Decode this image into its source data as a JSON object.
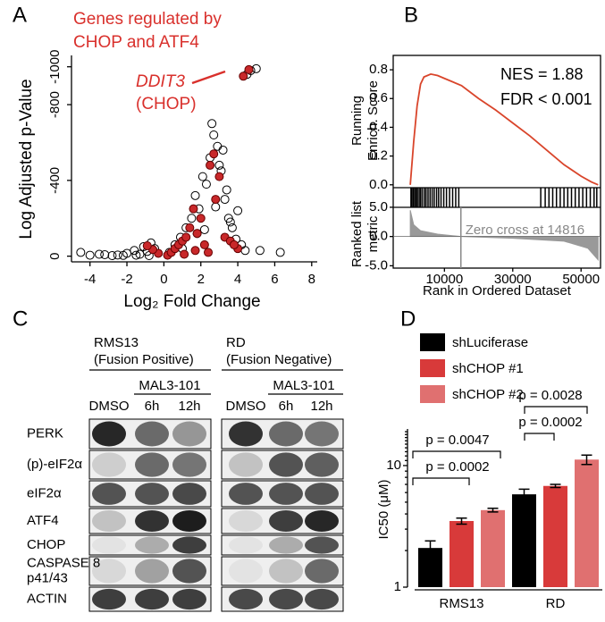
{
  "panels": [
    "A",
    "B",
    "C",
    "D"
  ],
  "chart_data": [
    {
      "type": "scatter",
      "title": [
        "Genes regulated by",
        "CHOP and ATF4"
      ],
      "annotation": [
        "DDIT3",
        "(CHOP)"
      ],
      "xlabel": "Log₂ Fold Change",
      "ylabel": "Log Adjusted p-Value",
      "xlim": [
        -5,
        8.3
      ],
      "ylim": [
        30,
        -1060
      ],
      "xticks": [
        -4,
        -2,
        0,
        2,
        4,
        6,
        8
      ],
      "yticks": [
        0,
        -400,
        -800,
        -1000
      ],
      "series": [
        {
          "color": "#000000",
          "style": "open",
          "x": [
            -4.5,
            -4,
            -3.2,
            -2.8,
            -2.5,
            -2,
            -1.6,
            -1.3,
            -1.1,
            -0.9,
            -0.7,
            -0.5,
            0.3,
            0.6,
            0.9,
            1.2,
            1.5,
            1.7,
            1.9,
            2.1,
            2.3,
            2.5,
            2.7,
            2.9,
            3.1,
            3.3,
            3.5,
            3.7,
            3.9,
            4.2,
            4.4,
            4.7,
            5.0,
            6.3,
            -1.5,
            -0.8,
            2.6,
            3.2,
            3.4,
            3.0,
            2.8,
            4.0,
            3.6,
            1.8,
            2.2,
            5.2,
            4.5,
            1.0,
            -2.2,
            -3.5
          ],
          "values": [
            -20,
            -5,
            -8,
            -3,
            -6,
            -15,
            -30,
            -10,
            -50,
            -25,
            -70,
            -40,
            -20,
            -60,
            -100,
            -150,
            -200,
            -320,
            -250,
            -420,
            -380,
            -520,
            -640,
            -580,
            -450,
            -300,
            -200,
            -150,
            -90,
            -60,
            -30,
            -980,
            -990,
            -20,
            -5,
            -3,
            -700,
            -560,
            -350,
            -480,
            -260,
            -240,
            -180,
            -120,
            -140,
            -30,
            -960,
            -40,
            -4,
            -10
          ]
        },
        {
          "color": "#c8282a",
          "style": "filled",
          "x": [
            0.2,
            0.4,
            0.6,
            0.8,
            1.0,
            1.2,
            1.4,
            1.6,
            1.8,
            2.0,
            2.2,
            2.5,
            2.8,
            3.0,
            3.3,
            3.6,
            4.0,
            4.6,
            4.3,
            -0.3,
            -0.6,
            -0.9,
            1.1,
            1.7,
            2.4,
            3.8,
            2.7
          ],
          "values": [
            -5,
            -20,
            -40,
            -60,
            -80,
            -100,
            -150,
            -250,
            -120,
            -200,
            -60,
            -480,
            -300,
            -420,
            -100,
            -80,
            -40,
            -985,
            -950,
            -15,
            -35,
            -55,
            -10,
            -30,
            -20,
            -60,
            -540
          ]
        }
      ]
    },
    {
      "type": "gsea",
      "annotations": [
        "NES = 1.88",
        "FDR < 0.001"
      ],
      "ylabel": [
        "Running",
        "Enrich. Score"
      ],
      "xlabel": "Rank in Ordered Dataset",
      "xlim": [
        -5000,
        55700
      ],
      "xticks": [
        10000,
        30000,
        50000
      ],
      "ylim": [
        -0.02,
        0.9
      ],
      "yticks": [
        {
          "value": 0.8,
          "label": "0.8"
        },
        {
          "value": 0.6,
          "label": "0.6"
        },
        {
          "value": 0.4,
          "label": "0.4"
        },
        {
          "value": 0.2,
          "label": "0.2"
        },
        {
          "value": 0,
          "label": "0.0"
        }
      ],
      "color": "#d9452b",
      "x": [
        0,
        1000,
        2000,
        3000,
        4000,
        6000,
        8000,
        10000,
        15000,
        20000,
        25000,
        30000,
        35000,
        40000,
        45000,
        50000,
        53000,
        55000
      ],
      "values": [
        0,
        0.3,
        0.55,
        0.7,
        0.75,
        0.77,
        0.76,
        0.74,
        0.69,
        0.6,
        0.52,
        0.43,
        0.34,
        0.24,
        0.14,
        0.06,
        0.02,
        0
      ],
      "hits": [
        200,
        500,
        900,
        1300,
        1700,
        2100,
        2600,
        3000,
        3500,
        4100,
        4600,
        5200,
        5800,
        6400,
        7000,
        7700,
        8300,
        9000,
        9800,
        10600,
        11500,
        12400,
        13300,
        14200,
        38200,
        39500,
        40600,
        41700,
        42800,
        43900,
        45000,
        46100,
        47200,
        48300,
        49400,
        50500,
        51600,
        52700,
        53800,
        54600
      ],
      "metric": {
        "ylabel": [
          "Ranked list",
          "metric"
        ],
        "annotation": "Zero cross at 14816",
        "zero_cross": 14816,
        "ylim": [
          -5.4,
          5.6
        ],
        "yticks": [
          {
            "value": 5,
            "label": "5.0"
          },
          {
            "value": 0,
            "label": "0.0"
          },
          {
            "value": -5,
            "label": "-5.0"
          }
        ],
        "color": "#999999",
        "x": [
          0,
          1000,
          3000,
          8000,
          14816,
          30000,
          45000,
          52000,
          55000
        ],
        "values": [
          4.5,
          2.0,
          1.0,
          0.4,
          0,
          -0.3,
          -0.8,
          -2,
          -4
        ]
      }
    },
    {
      "type": "bar",
      "log_y": true,
      "ylabel": "IC50 (μM)",
      "categories": [
        "RMS13",
        "RD"
      ],
      "ylim": [
        1,
        20
      ],
      "yticks": [
        1,
        10
      ],
      "series": [
        {
          "name": "shLuciferase",
          "color": "#000000",
          "values": [
            2.1,
            5.8
          ],
          "errors": [
            0.3,
            0.6
          ]
        },
        {
          "name": "shCHOP #1",
          "color": "#d83a3a",
          "values": [
            3.5,
            6.8
          ],
          "errors": [
            0.2,
            0.2
          ]
        },
        {
          "name": "shCHOP #2",
          "color": "#e07070",
          "values": [
            4.3,
            11.2
          ],
          "errors": [
            0.15,
            1.0
          ]
        }
      ],
      "annotations": [
        "p = 0.0047",
        "p = 0.0002",
        "p = 0.0028",
        "p = 0.0002"
      ]
    }
  ],
  "blot": {
    "cell_lines": [
      {
        "name": "RMS13",
        "subtitle": "(Fusion Positive)"
      },
      {
        "name": "RD",
        "subtitle": "(Fusion Negative)"
      }
    ],
    "treatment": "MAL3-101",
    "lanes": [
      "DMSO",
      "6h",
      "12h"
    ],
    "rows": [
      [
        "PERK"
      ],
      [
        "(p)-eIF2α"
      ],
      [
        "eIF2α"
      ],
      [
        "ATF4"
      ],
      [
        "CHOP"
      ],
      [
        "CASPASE 8",
        "p41/43"
      ],
      [
        "ACTIN"
      ]
    ]
  }
}
